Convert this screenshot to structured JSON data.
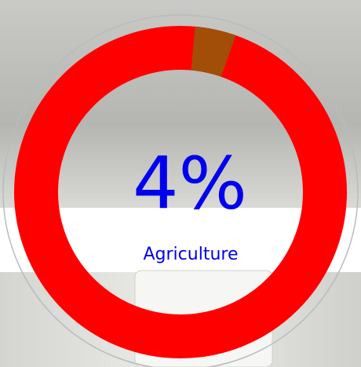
{
  "chart_data": {
    "type": "donut",
    "values": [
      4
    ],
    "value_labels": [
      "4%"
    ],
    "label": "Agriculture",
    "color": "#a24d08",
    "ring_color": "#ff0000",
    "text_color": "#0000ee"
  }
}
